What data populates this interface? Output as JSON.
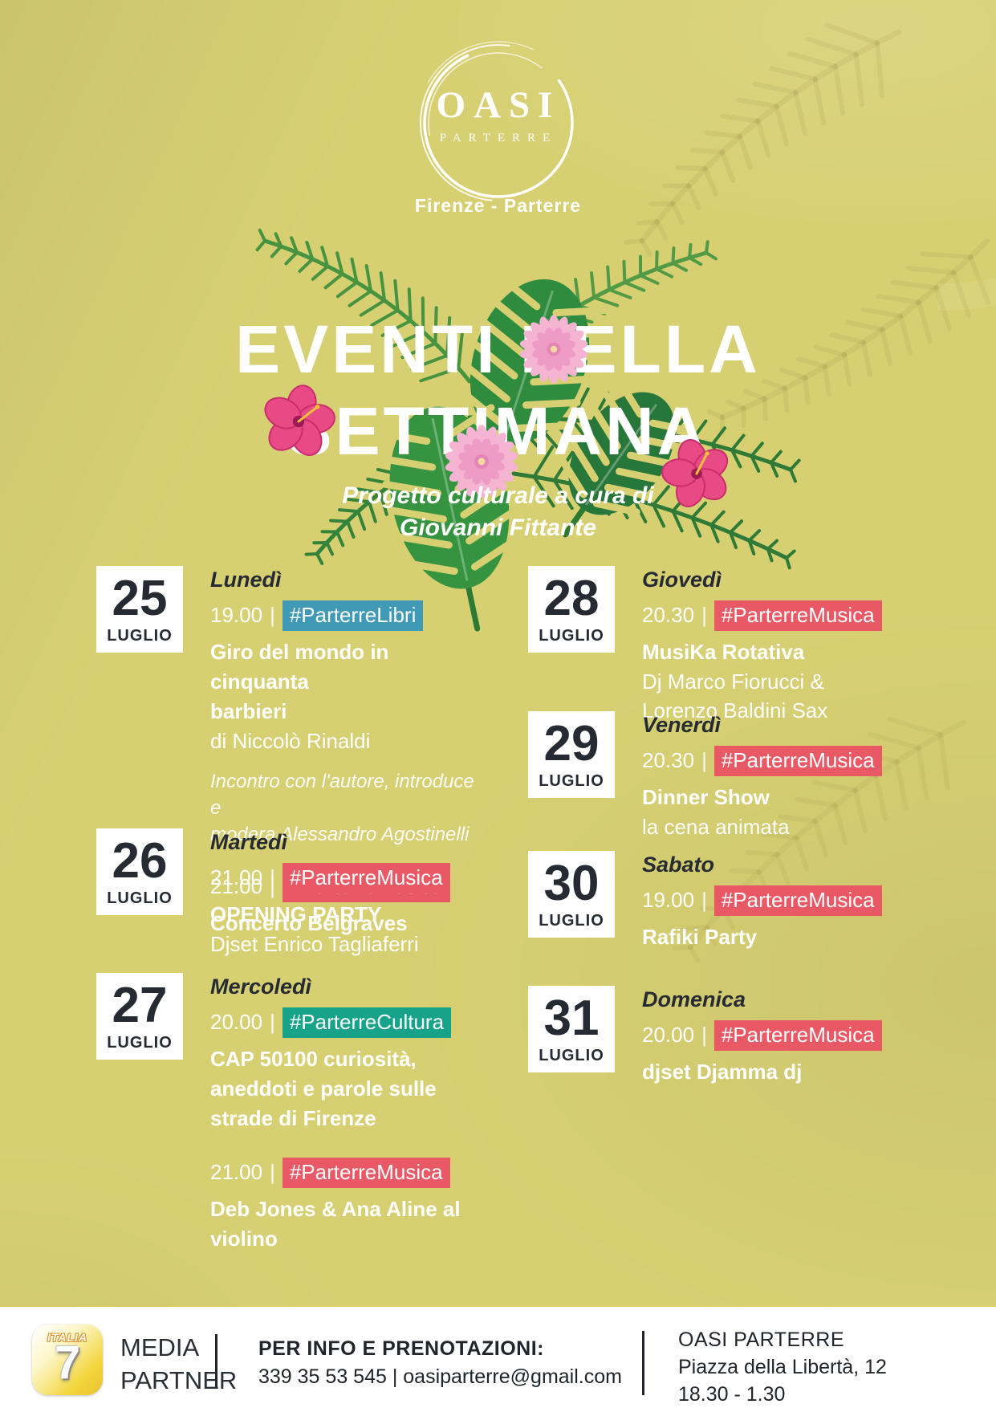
{
  "poster": {
    "logo": {
      "title": "OASI",
      "subtitle": "PARTERRE"
    },
    "location": "Firenze - Parterre",
    "title_line1": "EVENTI DELLA",
    "title_line2": "SETTIMANA",
    "subtitle_line1": "Progetto culturale a cura di",
    "subtitle_line2": "Giovanni Fittante"
  },
  "colors": {
    "background": "#d7d073",
    "dark_text": "#262b33",
    "tag_libri": "#4099b5",
    "tag_musica": "#e85965",
    "tag_cultura": "#17a389"
  },
  "events": [
    {
      "day": "25",
      "month": "LUGLIO",
      "weekday": "Lunedì",
      "items": [
        {
          "time": "19.00",
          "tag": "#ParterreLibri",
          "tag_color": "#4099b5",
          "title": "Giro del mondo in cinquanta\nbarbieri",
          "subtitle": "di Niccolò Rinaldi",
          "note": "Incontro con l'autore, introduce e\nmodera Alessandro Agostinelli"
        },
        {
          "time": "21.00",
          "tag": "#ParterreMusica",
          "tag_color": "#e85965",
          "title": "Concerto Belgraves"
        }
      ]
    },
    {
      "day": "26",
      "month": "LUGLIO",
      "weekday": "Martedì",
      "items": [
        {
          "time": "21.00",
          "tag": "#ParterreMusica",
          "tag_color": "#e85965",
          "title": "OPENING PARTY",
          "subtitle": "Djset Enrico Tagliaferri"
        }
      ]
    },
    {
      "day": "27",
      "month": "LUGLIO",
      "weekday": "Mercoledì",
      "items": [
        {
          "time": "20.00",
          "tag": "#ParterreCultura",
          "tag_color": "#17a389",
          "title": "CAP 50100 curiosità,\naneddoti e parole sulle\nstrade di Firenze"
        },
        {
          "time": "21.00",
          "tag": "#ParterreMusica",
          "tag_color": "#e85965",
          "title": "Deb Jones & Ana Aline al\nviolino"
        }
      ]
    },
    {
      "day": "28",
      "month": "LUGLIO",
      "weekday": "Giovedì",
      "items": [
        {
          "time": "20.30",
          "tag": "#ParterreMusica",
          "tag_color": "#e85965",
          "title": "MusiKa Rotativa",
          "subtitle": "Dj Marco Fiorucci & Lorenzo Baldini Sax"
        }
      ]
    },
    {
      "day": "29",
      "month": "LUGLIO",
      "weekday": "Venerdì",
      "items": [
        {
          "time": "20.30",
          "tag": "#ParterreMusica",
          "tag_color": "#e85965",
          "title": "Dinner Show",
          "subtitle": "la cena animata"
        }
      ]
    },
    {
      "day": "30",
      "month": "LUGLIO",
      "weekday": "Sabato",
      "items": [
        {
          "time": "19.00",
          "tag": "#ParterreMusica",
          "tag_color": "#e85965",
          "title": "Rafiki Party"
        }
      ]
    },
    {
      "day": "31",
      "month": "LUGLIO",
      "weekday": "Domenica",
      "items": [
        {
          "time": "20.00",
          "tag": "#ParterreMusica",
          "tag_color": "#e85965",
          "title": "djset Djamma dj"
        }
      ]
    }
  ],
  "footer": {
    "media_partner": {
      "logo_top": "ITALIA",
      "logo_number": "7",
      "label_line1": "MEDIA",
      "label_line2": "PARTNER"
    },
    "info": {
      "line1": "PER INFO E PRENOTAZIONI:",
      "line2": "339 35 53 545 | oasiparterre@gmail.com"
    },
    "venue": {
      "name": "OASI PARTERRE",
      "address": "Piazza della Libertà, 12",
      "hours": "18.30 - 1.30"
    }
  }
}
